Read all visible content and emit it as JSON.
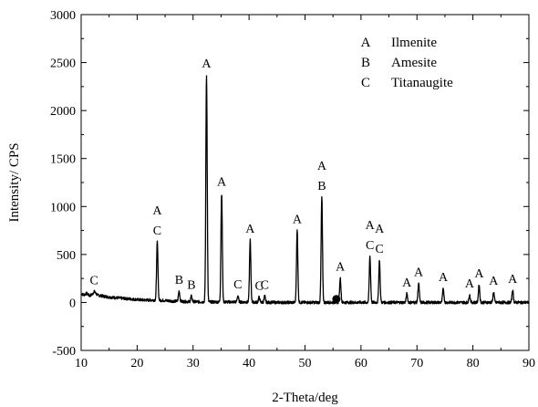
{
  "chart_data": {
    "type": "line",
    "xlabel": "2-Theta/deg",
    "ylabel": "Intensity/ CPS",
    "xlim": [
      10,
      90
    ],
    "ylim": [
      -500,
      3000
    ],
    "x_ticks": [
      10,
      20,
      30,
      40,
      50,
      60,
      70,
      80,
      90
    ],
    "y_ticks": [
      -500,
      0,
      500,
      1000,
      1500,
      2000,
      2500,
      3000
    ],
    "grid": false,
    "legend": {
      "placement": "top-right",
      "entries": [
        {
          "key": "A",
          "label": "Ilmenite"
        },
        {
          "key": "B",
          "label": "Amesite"
        },
        {
          "key": "C",
          "label": "Titanaugite"
        }
      ]
    },
    "baseline": [
      [
        10,
        90
      ],
      [
        10.5,
        80
      ],
      [
        11,
        95
      ],
      [
        11.5,
        70
      ],
      [
        12,
        85
      ],
      [
        12.5,
        100
      ],
      [
        13,
        75
      ],
      [
        14,
        65
      ],
      [
        15,
        55
      ],
      [
        16,
        50
      ],
      [
        17,
        45
      ],
      [
        18,
        40
      ],
      [
        19,
        35
      ],
      [
        20,
        30
      ],
      [
        21,
        25
      ],
      [
        22,
        25
      ],
      [
        23,
        25
      ],
      [
        25,
        20
      ],
      [
        26,
        15
      ],
      [
        28,
        10
      ],
      [
        30,
        8
      ],
      [
        32,
        5
      ],
      [
        34,
        5
      ],
      [
        36,
        5
      ],
      [
        38,
        5
      ],
      [
        40,
        3
      ],
      [
        45,
        0
      ],
      [
        50,
        0
      ],
      [
        55,
        0
      ],
      [
        60,
        0
      ],
      [
        65,
        0
      ],
      [
        70,
        0
      ],
      [
        75,
        0
      ],
      [
        80,
        0
      ],
      [
        85,
        0
      ],
      [
        90,
        0
      ]
    ],
    "peaks": [
      {
        "x": 12.3,
        "y": 115,
        "label_lines": [
          "C"
        ]
      },
      {
        "x": 23.6,
        "y": 630,
        "label_lines": [
          "A",
          "C"
        ]
      },
      {
        "x": 27.5,
        "y": 120,
        "label_lines": [
          "B"
        ]
      },
      {
        "x": 29.7,
        "y": 65,
        "label_lines": [
          "B"
        ]
      },
      {
        "x": 32.4,
        "y": 2370,
        "label_lines": [
          "A"
        ]
      },
      {
        "x": 35.1,
        "y": 1140,
        "label_lines": [
          "A"
        ]
      },
      {
        "x": 38.0,
        "y": 70,
        "label_lines": [
          "C"
        ]
      },
      {
        "x": 40.2,
        "y": 650,
        "label_lines": [
          "A"
        ]
      },
      {
        "x": 41.8,
        "y": 55,
        "label_lines": [
          "C"
        ]
      },
      {
        "x": 42.8,
        "y": 65,
        "label_lines": [
          "C"
        ]
      },
      {
        "x": 48.6,
        "y": 750,
        "label_lines": [
          "A"
        ]
      },
      {
        "x": 53.0,
        "y": 1100,
        "label_lines": [
          "A",
          "B"
        ]
      },
      {
        "x": 56.3,
        "y": 255,
        "label_lines": [
          "A"
        ]
      },
      {
        "x": 61.6,
        "y": 480,
        "label_lines": [
          "A",
          "C"
        ]
      },
      {
        "x": 63.3,
        "y": 440,
        "label_lines": [
          "A",
          "C"
        ]
      },
      {
        "x": 68.2,
        "y": 90,
        "label_lines": [
          "A"
        ]
      },
      {
        "x": 70.3,
        "y": 200,
        "label_lines": [
          "A"
        ]
      },
      {
        "x": 74.7,
        "y": 145,
        "label_lines": [
          "A"
        ]
      },
      {
        "x": 79.4,
        "y": 80,
        "label_lines": [
          "A"
        ]
      },
      {
        "x": 81.1,
        "y": 185,
        "label_lines": [
          "A"
        ]
      },
      {
        "x": 83.7,
        "y": 110,
        "label_lines": [
          "A"
        ]
      },
      {
        "x": 87.1,
        "y": 130,
        "label_lines": [
          "A"
        ]
      }
    ],
    "extra_marker": {
      "x": 55.6,
      "y": 35
    }
  }
}
